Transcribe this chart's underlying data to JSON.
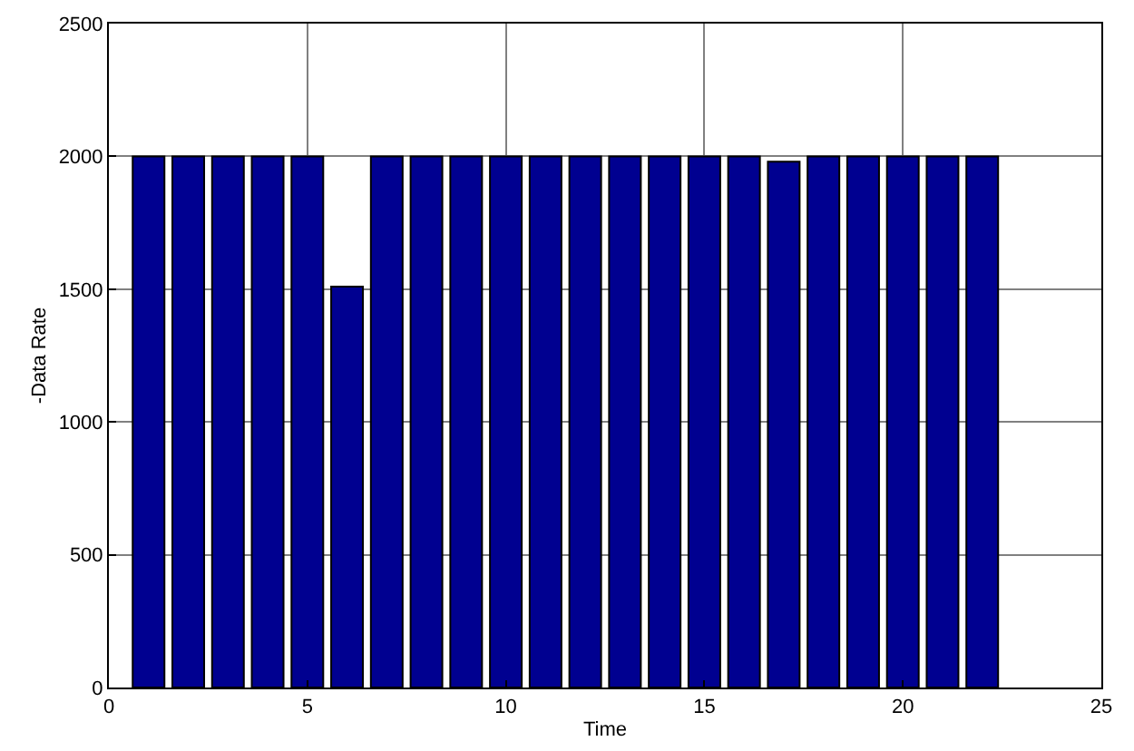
{
  "chart_data": {
    "type": "bar",
    "xlabel": "Time",
    "ylabel": "-Data Rate",
    "x": [
      1,
      2,
      3,
      4,
      5,
      6,
      7,
      8,
      9,
      10,
      11,
      12,
      13,
      14,
      15,
      16,
      17,
      18,
      19,
      20,
      21,
      22
    ],
    "values": [
      2000,
      2000,
      2000,
      2000,
      2000,
      1510,
      2000,
      2000,
      2000,
      2000,
      2000,
      2000,
      2000,
      2000,
      2000,
      2000,
      1980,
      2000,
      2000,
      2000,
      2000,
      2000
    ],
    "color": "#000090",
    "xlim": [
      0,
      25
    ],
    "xticks": [
      0,
      5,
      10,
      15,
      20,
      25
    ],
    "ylim": [
      0,
      2500
    ],
    "yticks": [
      0,
      500,
      1000,
      1500,
      2000,
      2500
    ],
    "grid": true
  }
}
